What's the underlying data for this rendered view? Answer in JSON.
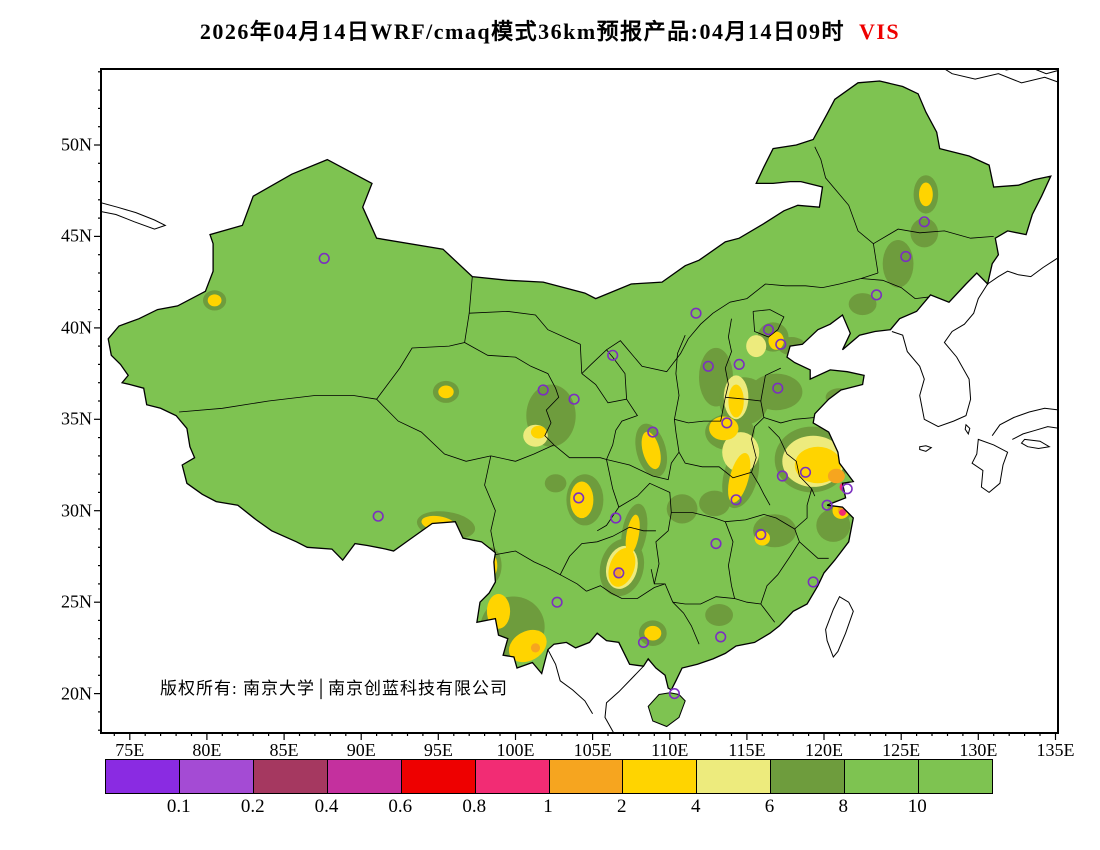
{
  "header": {
    "title_main": "2026年04月14日WRF/cmaq模式36km预报产品:04月14日09时",
    "title_var": "VIS",
    "title_var_color": "#ee0000"
  },
  "annotations": {
    "copyright": "版权所有: 南京大学│南京创蓝科技有限公司"
  },
  "chart_data": {
    "type": "heatmap",
    "subtype": "filled-contour-forecast-map",
    "title": "2026年04月14日WRF/cmaq模式36km预报产品:04月14日09时 VIS",
    "variable": "VIS",
    "region": "China",
    "lon_range": [
      73.2,
      135.1
    ],
    "lat_range": [
      17.9,
      54.1
    ],
    "lon_ticks": [
      {
        "label": "75E",
        "lon": 75
      },
      {
        "label": "80E",
        "lon": 80
      },
      {
        "label": "85E",
        "lon": 85
      },
      {
        "label": "90E",
        "lon": 90
      },
      {
        "label": "95E",
        "lon": 95
      },
      {
        "label": "100E",
        "lon": 100
      },
      {
        "label": "105E",
        "lon": 105
      },
      {
        "label": "110E",
        "lon": 110
      },
      {
        "label": "115E",
        "lon": 115
      },
      {
        "label": "120E",
        "lon": 120
      },
      {
        "label": "125E",
        "lon": 125
      },
      {
        "label": "130E",
        "lon": 130
      },
      {
        "label": "135E",
        "lon": 135
      }
    ],
    "lat_ticks": [
      {
        "label": "50N",
        "lat": 50
      },
      {
        "label": "45N",
        "lat": 45
      },
      {
        "label": "40N",
        "lat": 40
      },
      {
        "label": "35N",
        "lat": 35
      },
      {
        "label": "30N",
        "lat": 30
      },
      {
        "label": "25N",
        "lat": 25
      },
      {
        "label": "20N",
        "lat": 20
      }
    ],
    "colorbar": {
      "labels": [
        "0.1",
        "0.2",
        "0.4",
        "0.6",
        "0.8",
        "1",
        "2",
        "4",
        "6",
        "8",
        "10"
      ],
      "colors": [
        "#8A2BE2",
        "#A44BD4",
        "#A53860",
        "#C4309E",
        "#EE0000",
        "#F22C74",
        "#F6A51F",
        "#FFD400",
        "#EDEB7D",
        "#6E9C3D",
        "#7EC351",
        "#7EC351"
      ]
    },
    "map_colors": {
      "base": "#7EC351",
      "land_outside": "#FFFFFF"
    },
    "station_marker_color": "#7B2FBF",
    "levels_palette": {
      "6-8": "#6E9C3D",
      "4-6": "#EDEB7D",
      "2-4": "#FFD400",
      "1-2": "#F6A51F",
      "0.8-1": "#F22C74"
    },
    "stations": [
      [
        87.6,
        43.8
      ],
      [
        91.1,
        29.7
      ],
      [
        101.8,
        36.6
      ],
      [
        103.8,
        36.1
      ],
      [
        106.3,
        38.5
      ],
      [
        111.7,
        40.8
      ],
      [
        112.5,
        37.9
      ],
      [
        116.4,
        39.9
      ],
      [
        117.2,
        39.1
      ],
      [
        114.5,
        38.0
      ],
      [
        113.7,
        34.8
      ],
      [
        108.9,
        34.3
      ],
      [
        117.0,
        36.7
      ],
      [
        118.8,
        32.1
      ],
      [
        117.3,
        31.9
      ],
      [
        121.5,
        31.2
      ],
      [
        120.2,
        30.3
      ],
      [
        115.9,
        28.7
      ],
      [
        119.3,
        26.1
      ],
      [
        114.3,
        30.6
      ],
      [
        113.0,
        28.2
      ],
      [
        113.3,
        23.1
      ],
      [
        108.3,
        22.8
      ],
      [
        110.3,
        20.0
      ],
      [
        106.5,
        29.6
      ],
      [
        104.1,
        30.7
      ],
      [
        106.7,
        26.6
      ],
      [
        102.7,
        25.0
      ],
      [
        123.4,
        41.8
      ],
      [
        125.3,
        43.9
      ],
      [
        126.5,
        45.8
      ]
    ],
    "regions": [
      [
        "6-8",
        113.0,
        37.3,
        1.1,
        1.6,
        0
      ],
      [
        "6-8",
        114.8,
        36.0,
        1.6,
        1.3,
        0
      ],
      [
        "6-8",
        116.9,
        36.5,
        1.7,
        1.0,
        0
      ],
      [
        "6-8",
        121.0,
        36.2,
        0.9,
        0.5,
        0
      ],
      [
        "6-8",
        116.7,
        39.5,
        1.0,
        0.8,
        0
      ],
      [
        "6-8",
        117.9,
        39.0,
        0.9,
        0.5,
        0
      ],
      [
        "6-8",
        113.9,
        34.3,
        1.6,
        1.0,
        0
      ],
      [
        "6-8",
        114.6,
        31.9,
        1.1,
        1.8,
        15
      ],
      [
        "6-8",
        119.2,
        32.8,
        2.4,
        1.8,
        0
      ],
      [
        "6-8",
        120.6,
        29.2,
        1.1,
        0.9,
        0
      ],
      [
        "6-8",
        116.8,
        28.9,
        1.4,
        0.9,
        0
      ],
      [
        "6-8",
        112.9,
        30.4,
        1.0,
        0.7,
        0
      ],
      [
        "6-8",
        110.8,
        30.1,
        1.0,
        0.8,
        0
      ],
      [
        "6-8",
        108.8,
        33.3,
        0.95,
        1.5,
        -15
      ],
      [
        "6-8",
        104.5,
        30.6,
        1.2,
        1.4,
        0
      ],
      [
        "6-8",
        102.3,
        35.2,
        1.6,
        1.7,
        0
      ],
      [
        "6-8",
        95.5,
        36.5,
        0.85,
        0.6,
        0
      ],
      [
        "6-8",
        106.9,
        26.9,
        1.4,
        1.6,
        15
      ],
      [
        "6-8",
        107.7,
        28.8,
        0.8,
        1.6,
        10
      ],
      [
        "6-8",
        99.8,
        23.6,
        2.1,
        1.7,
        -20
      ],
      [
        "6-8",
        98.4,
        27.0,
        0.7,
        1.0,
        0
      ],
      [
        "6-8",
        95.5,
        29.2,
        1.9,
        0.75,
        8
      ],
      [
        "6-8",
        108.9,
        23.3,
        0.9,
        0.7,
        0
      ],
      [
        "6-8",
        113.2,
        24.3,
        0.9,
        0.6,
        0
      ],
      [
        "6-8",
        124.8,
        43.5,
        1.0,
        1.3,
        0
      ],
      [
        "6-8",
        126.5,
        45.2,
        0.9,
        0.8,
        0
      ],
      [
        "6-8",
        126.6,
        47.3,
        0.8,
        1.05,
        0
      ],
      [
        "6-8",
        122.5,
        41.3,
        0.9,
        0.6,
        0
      ],
      [
        "6-8",
        80.5,
        41.5,
        0.75,
        0.55,
        0
      ],
      [
        "6-8",
        102.6,
        31.5,
        0.7,
        0.5,
        0
      ],
      [
        "6-8",
        121.0,
        30.0,
        0.8,
        0.6,
        0
      ],
      [
        "4-6",
        114.3,
        36.2,
        0.8,
        1.2,
        0
      ],
      [
        "4-6",
        115.6,
        39.0,
        0.65,
        0.6,
        0
      ],
      [
        "4-6",
        114.6,
        33.2,
        1.2,
        1.1,
        0
      ],
      [
        "4-6",
        119.3,
        32.7,
        2.0,
        1.4,
        0
      ],
      [
        "4-6",
        101.3,
        34.1,
        0.8,
        0.6,
        0
      ],
      [
        "4-6",
        104.2,
        30.7,
        0.5,
        0.6,
        0
      ],
      [
        "4-6",
        106.9,
        26.9,
        1.0,
        1.2,
        15
      ],
      [
        "2-4",
        114.3,
        36.0,
        0.5,
        0.9,
        0
      ],
      [
        "2-4",
        116.9,
        39.3,
        0.5,
        0.5,
        0
      ],
      [
        "2-4",
        113.5,
        34.5,
        0.95,
        0.65,
        0
      ],
      [
        "2-4",
        114.5,
        31.8,
        0.6,
        1.4,
        15
      ],
      [
        "2-4",
        119.6,
        32.5,
        1.5,
        1.0,
        0
      ],
      [
        "2-4",
        121.1,
        30.0,
        0.55,
        0.45,
        0
      ],
      [
        "2-4",
        116.0,
        28.5,
        0.5,
        0.4,
        0
      ],
      [
        "2-4",
        108.8,
        33.3,
        0.55,
        1.05,
        -15
      ],
      [
        "2-4",
        104.3,
        30.6,
        0.75,
        1.0,
        0
      ],
      [
        "2-4",
        95.5,
        36.5,
        0.5,
        0.35,
        0
      ],
      [
        "2-4",
        106.9,
        26.9,
        0.8,
        1.1,
        20
      ],
      [
        "2-4",
        107.6,
        28.7,
        0.4,
        1.1,
        10
      ],
      [
        "2-4",
        100.8,
        22.6,
        1.3,
        0.8,
        -30
      ],
      [
        "2-4",
        98.9,
        24.5,
        0.75,
        0.95,
        0
      ],
      [
        "2-4",
        98.4,
        27.0,
        0.42,
        0.65,
        0
      ],
      [
        "2-4",
        95.0,
        29.3,
        1.1,
        0.4,
        8
      ],
      [
        "2-4",
        108.9,
        23.3,
        0.55,
        0.4,
        0
      ],
      [
        "2-4",
        126.6,
        47.3,
        0.45,
        0.65,
        0
      ],
      [
        "2-4",
        80.5,
        41.5,
        0.45,
        0.33,
        0
      ],
      [
        "2-4",
        101.5,
        34.3,
        0.5,
        0.35,
        0
      ],
      [
        "1-2",
        120.8,
        31.9,
        0.55,
        0.4,
        0
      ],
      [
        "1-2",
        121.2,
        30.0,
        0.3,
        0.25,
        0
      ],
      [
        "1-2",
        106.6,
        26.6,
        0.25,
        0.3,
        0
      ],
      [
        "1-2",
        101.3,
        22.5,
        0.3,
        0.25,
        0
      ],
      [
        "0.8-1",
        121.3,
        31.3,
        0.3,
        0.25,
        0
      ],
      [
        "0.8-1",
        121.2,
        29.9,
        0.22,
        0.18,
        0
      ]
    ]
  }
}
